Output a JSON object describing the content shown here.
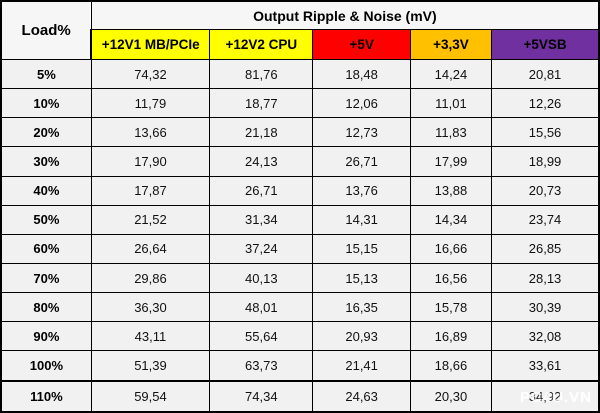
{
  "table": {
    "corner_header": "Load%",
    "group_header": "Output Ripple & Noise (mV)",
    "columns": [
      {
        "label": "+12V1 MB/PCIe",
        "color": "#ffff00",
        "text_color": "#000000"
      },
      {
        "label": "+12V2 CPU",
        "color": "#ffff00",
        "text_color": "#000000"
      },
      {
        "label": "+5V",
        "color": "#ff0000",
        "text_color": "#000000"
      },
      {
        "label": "+3,3V",
        "color": "#ffc000",
        "text_color": "#000000"
      },
      {
        "label": "+5VSB",
        "color": "#7030a0",
        "text_color": "#000000"
      }
    ],
    "rows": [
      {
        "load": "5%",
        "values": [
          "74,32",
          "81,76",
          "18,48",
          "14,24",
          "20,81"
        ]
      },
      {
        "load": "10%",
        "values": [
          "11,79",
          "18,77",
          "12,06",
          "11,01",
          "12,26"
        ]
      },
      {
        "load": "20%",
        "values": [
          "13,66",
          "21,18",
          "12,73",
          "11,83",
          "15,56"
        ]
      },
      {
        "load": "30%",
        "values": [
          "17,90",
          "24,13",
          "26,71",
          "17,99",
          "18,99"
        ]
      },
      {
        "load": "40%",
        "values": [
          "17,87",
          "26,71",
          "13,76",
          "13,88",
          "20,73"
        ]
      },
      {
        "load": "50%",
        "values": [
          "21,52",
          "31,34",
          "14,31",
          "14,34",
          "23,74"
        ]
      },
      {
        "load": "60%",
        "values": [
          "26,64",
          "37,24",
          "15,15",
          "16,66",
          "26,85"
        ]
      },
      {
        "load": "70%",
        "values": [
          "29,86",
          "40,13",
          "15,13",
          "16,56",
          "28,13"
        ]
      },
      {
        "load": "80%",
        "values": [
          "36,30",
          "48,01",
          "16,35",
          "15,78",
          "30,39"
        ]
      },
      {
        "load": "90%",
        "values": [
          "43,11",
          "55,64",
          "20,93",
          "16,89",
          "32,08"
        ]
      },
      {
        "load": "100%",
        "values": [
          "51,39",
          "63,73",
          "21,41",
          "18,66",
          "33,61"
        ]
      },
      {
        "load": "110%",
        "values": [
          "59,54",
          "74,34",
          "24,63",
          "20,30",
          "34,92"
        ]
      }
    ]
  },
  "watermark": "PC4U.VN",
  "chart_data": {
    "type": "table",
    "title": "Output Ripple & Noise (mV)",
    "categories": [
      "5%",
      "10%",
      "20%",
      "30%",
      "40%",
      "50%",
      "60%",
      "70%",
      "80%",
      "90%",
      "100%",
      "110%"
    ],
    "series": [
      {
        "name": "+12V1 MB/PCIe",
        "values": [
          74.32,
          11.79,
          13.66,
          17.9,
          17.87,
          21.52,
          26.64,
          29.86,
          36.3,
          43.11,
          51.39,
          59.54
        ]
      },
      {
        "name": "+12V2 CPU",
        "values": [
          81.76,
          18.77,
          21.18,
          24.13,
          26.71,
          31.34,
          37.24,
          40.13,
          48.01,
          55.64,
          63.73,
          74.34
        ]
      },
      {
        "name": "+5V",
        "values": [
          18.48,
          12.06,
          12.73,
          26.71,
          13.76,
          14.31,
          15.15,
          15.13,
          16.35,
          20.93,
          21.41,
          24.63
        ]
      },
      {
        "name": "+3,3V",
        "values": [
          14.24,
          11.01,
          11.83,
          17.99,
          13.88,
          14.34,
          16.66,
          16.56,
          15.78,
          16.89,
          18.66,
          20.3
        ]
      },
      {
        "name": "+5VSB",
        "values": [
          20.81,
          12.26,
          15.56,
          18.99,
          20.73,
          23.74,
          26.85,
          28.13,
          30.39,
          32.08,
          33.61,
          34.92
        ]
      }
    ],
    "xlabel": "Load%",
    "ylabel": "Ripple & Noise (mV)"
  }
}
